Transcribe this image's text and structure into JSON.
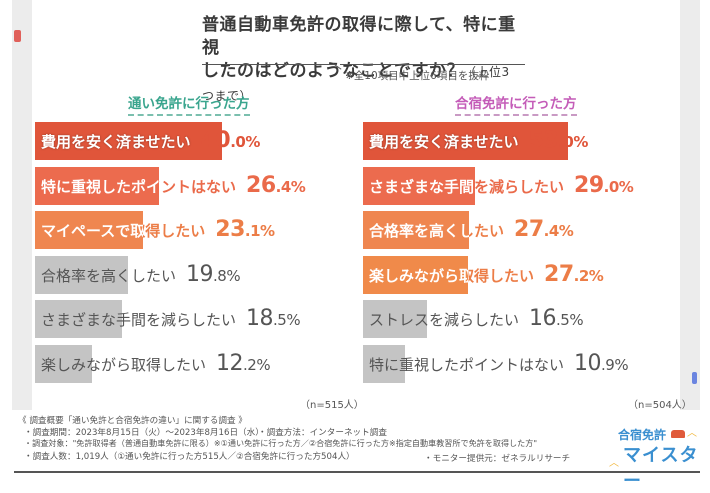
{
  "title": {
    "line1": "普通自動車免許の取得に際して、特に重視",
    "line2": "したのはどのようなことですか？",
    "line2_sub": "（上位3つまで）",
    "note": "※全10項目中上位6項目を抜粋"
  },
  "colors": {
    "bar_rank1": "#e0553a",
    "bar_rank2": "#ec6b4e",
    "bar_rank3": "#ef8650",
    "bar_rank4": "#f08a4a",
    "bar_gray": "#c4c4c4",
    "value_rank1": "#e0553a",
    "value_rank2": "#ea6a4a",
    "value_rank3": "#ec7d47",
    "left_group": "#3aa58e",
    "right_group": "#c45cb8"
  },
  "chart_data": [
    {
      "type": "bar",
      "orientation": "horizontal",
      "title": "通い免許に行った方",
      "n_label": "（n=515人）",
      "unit": "%",
      "categories": [
        "費用を安く済ませたい",
        "特に重視したポイントはない",
        "マイペースで取得したい",
        "合格率を高くしたい",
        "さまざまな手間を減らしたい",
        "楽しみながら取得したい"
      ],
      "values": [
        40.0,
        26.4,
        23.1,
        19.8,
        18.5,
        12.2
      ],
      "highlight": [
        "rank1",
        "rank2",
        "rank3",
        "gray",
        "gray",
        "gray"
      ],
      "xlim": [
        0,
        100
      ],
      "grid": false
    },
    {
      "type": "bar",
      "orientation": "horizontal",
      "title": "合宿免許に行った方",
      "n_label": "（n=504人）",
      "unit": "%",
      "categories": [
        "費用を安く済ませたい",
        "さまざまな手間を減らしたい",
        "合格率を高くしたい",
        "楽しみながら取得したい",
        "ストレスを減らしたい",
        "特に重視したポイントはない"
      ],
      "values": [
        53.0,
        29.0,
        27.4,
        27.2,
        16.5,
        10.9
      ],
      "highlight": [
        "rank1",
        "rank2",
        "rank3",
        "rank4",
        "gray",
        "gray"
      ],
      "xlim": [
        0,
        100
      ],
      "grid": false
    }
  ],
  "footer": {
    "heading": "《 調査概要「通い免許と合宿免許の違い」に関する調査 》",
    "period": "・調査期間：2023年8月15日（火）〜2023年8月16日（水）",
    "method": "・調査方法：インターネット調査",
    "target": "・調査対象：\"免許取得者（普通自動車免許に限る）※①通い免許に行った方／②合宿免許に行った方※指定自動車教習所で免許を取得した方\"",
    "count": "・調査人数：1,019人（①通い免許に行った方515人／②合宿免許に行った方504人）",
    "provider": "・モニター提供元：ゼネラルリサーチ"
  },
  "logo": {
    "top": "合宿免許",
    "bottom": "マイスター"
  }
}
